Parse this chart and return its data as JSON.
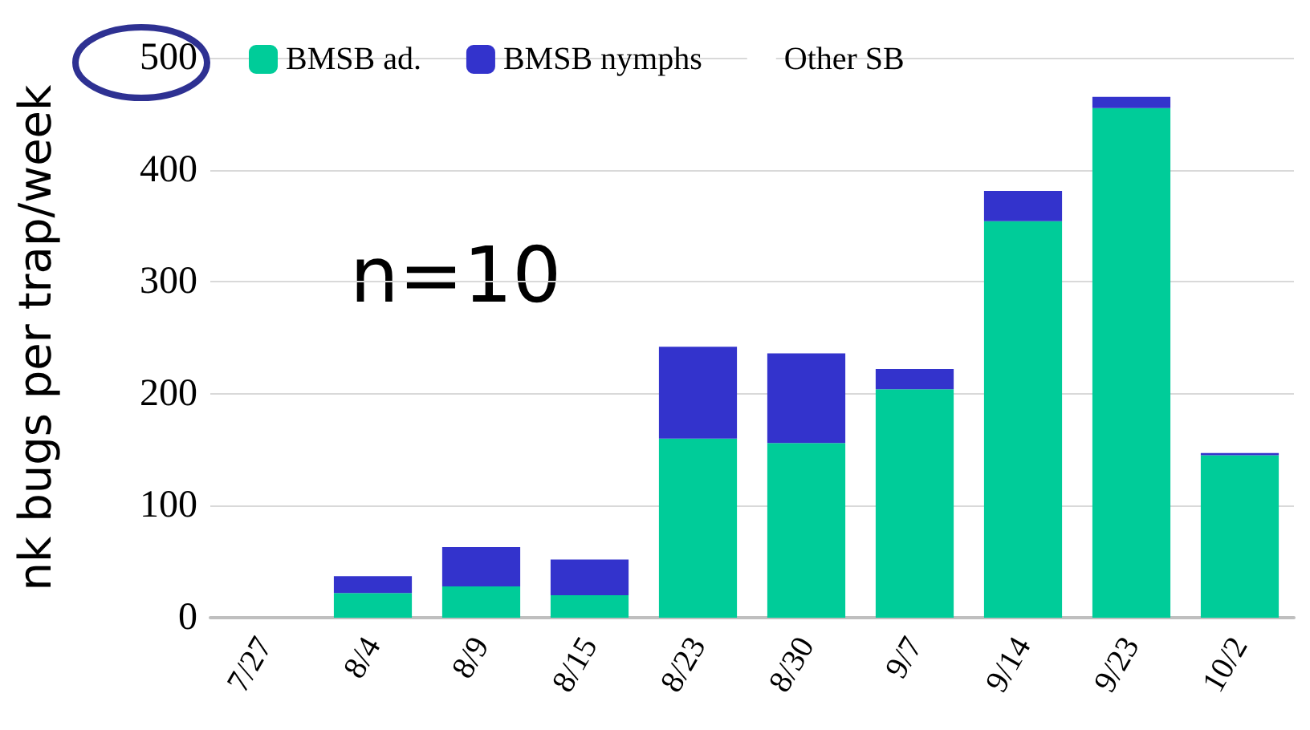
{
  "chart_data": {
    "type": "bar",
    "ylabel": "nk bugs per trap/week",
    "categories": [
      "7/27",
      "8/4",
      "8/9",
      "8/15",
      "8/23",
      "8/30",
      "9/7",
      "9/14",
      "9/23",
      "10/2"
    ],
    "series": [
      {
        "name": "BMSB ad.",
        "color": "#00cc99",
        "values": [
          0,
          22,
          28,
          20,
          160,
          156,
          204,
          354,
          455,
          145
        ]
      },
      {
        "name": "BMSB nymphs",
        "color": "#3333cc",
        "values": [
          0,
          15,
          35,
          32,
          82,
          80,
          18,
          27,
          10,
          2
        ]
      },
      {
        "name": "Other SB",
        "color": "#ffffff",
        "values": [
          0,
          0,
          0,
          0,
          0,
          0,
          0,
          0,
          0,
          0
        ]
      }
    ],
    "stacked": true,
    "ylim": [
      0,
      500
    ],
    "yticks": [
      0,
      100,
      200,
      300,
      400,
      500
    ],
    "grid": "y",
    "legend": "top left",
    "annotations": [
      "n=10"
    ]
  }
}
